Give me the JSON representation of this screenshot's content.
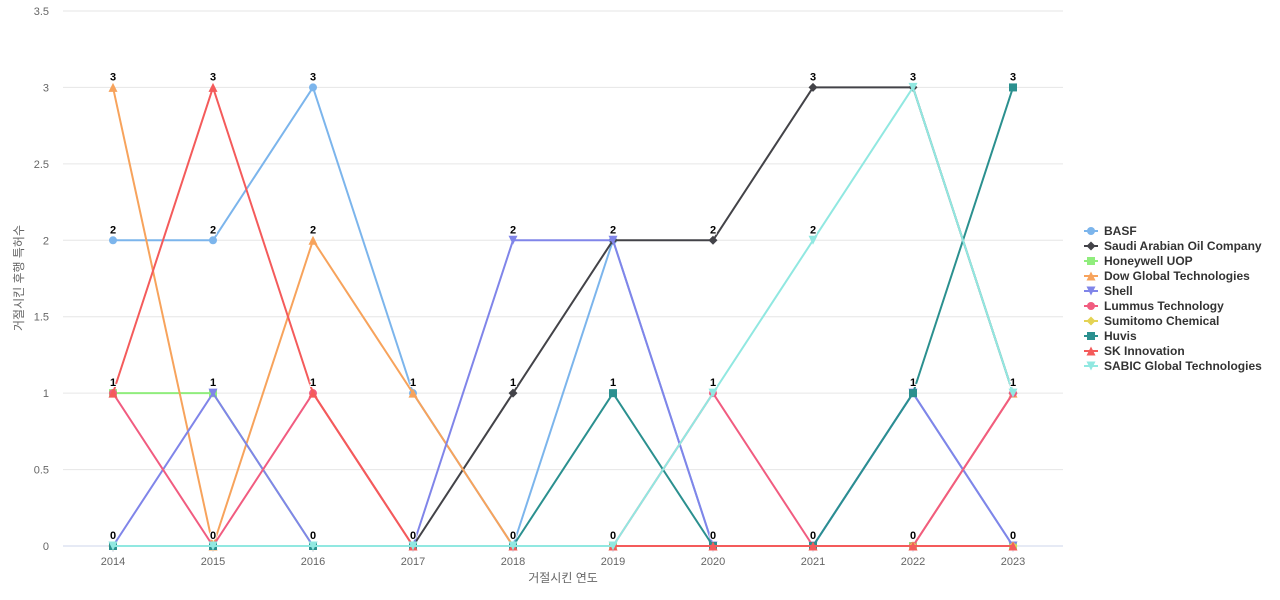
{
  "chart_data": {
    "type": "line",
    "xlabel": "거절시킨 연도",
    "ylabel": "거절시킨 후행 특허수",
    "ylim": [
      0,
      3.5
    ],
    "yticks": [
      "0",
      "0.5",
      "1",
      "1.5",
      "2",
      "2.5",
      "3",
      "3.5"
    ],
    "categories": [
      "2014",
      "2015",
      "2016",
      "2017",
      "2018",
      "2019",
      "2020",
      "2021",
      "2022",
      "2023"
    ],
    "grid": true,
    "legend_position": "right",
    "series": [
      {
        "name": "BASF",
        "color": "#7cb5ec",
        "marker": "circle",
        "values": [
          2,
          2,
          3,
          1,
          0,
          2,
          0,
          0,
          1,
          0
        ]
      },
      {
        "name": "Saudi Arabian Oil Company",
        "color": "#434348",
        "marker": "diamond",
        "values": [
          0,
          0,
          0,
          0,
          1,
          2,
          2,
          3,
          3,
          1
        ]
      },
      {
        "name": "Honeywell UOP",
        "color": "#90ed7d",
        "marker": "square",
        "values": [
          1,
          1,
          0,
          0,
          0,
          0,
          0,
          0,
          0,
          0
        ]
      },
      {
        "name": "Dow Global Technologies",
        "color": "#f7a35c",
        "marker": "triangle",
        "values": [
          3,
          0,
          2,
          1,
          0,
          0,
          0,
          0,
          0,
          1
        ]
      },
      {
        "name": "Shell",
        "color": "#8085e9",
        "marker": "triangle-down",
        "values": [
          0,
          1,
          0,
          0,
          2,
          2,
          0,
          0,
          1,
          0
        ]
      },
      {
        "name": "Lummus Technology",
        "color": "#f15c80",
        "marker": "circle",
        "values": [
          1,
          0,
          1,
          0,
          0,
          0,
          1,
          0,
          0,
          1
        ]
      },
      {
        "name": "Sumitomo Chemical",
        "color": "#e4d354",
        "marker": "diamond",
        "values": [
          0,
          0,
          0,
          0,
          0,
          0,
          0,
          0,
          0,
          0
        ]
      },
      {
        "name": "Huvis",
        "color": "#2b908f",
        "marker": "square",
        "values": [
          0,
          0,
          0,
          0,
          0,
          1,
          0,
          0,
          1,
          3
        ]
      },
      {
        "name": "SK Innovation",
        "color": "#f45b5b",
        "marker": "triangle",
        "values": [
          1,
          3,
          1,
          0,
          0,
          0,
          0,
          0,
          0,
          0
        ]
      },
      {
        "name": "SABIC Global Technologies",
        "color": "#91e8e1",
        "marker": "triangle-down",
        "values": [
          0,
          0,
          0,
          0,
          0,
          0,
          1,
          2,
          3,
          1
        ]
      }
    ],
    "data_labels": [
      {
        "x": "2014",
        "y": 3,
        "text": "3"
      },
      {
        "x": "2014",
        "y": 2,
        "text": "2"
      },
      {
        "x": "2014",
        "y": 1,
        "text": "1"
      },
      {
        "x": "2014",
        "y": 0,
        "text": "0"
      },
      {
        "x": "2015",
        "y": 3,
        "text": "3"
      },
      {
        "x": "2015",
        "y": 2,
        "text": "2"
      },
      {
        "x": "2015",
        "y": 1,
        "text": "1"
      },
      {
        "x": "2015",
        "y": 0,
        "text": "0"
      },
      {
        "x": "2016",
        "y": 3,
        "text": "3"
      },
      {
        "x": "2016",
        "y": 2,
        "text": "2"
      },
      {
        "x": "2016",
        "y": 1,
        "text": "1"
      },
      {
        "x": "2016",
        "y": 0,
        "text": "0"
      },
      {
        "x": "2017",
        "y": 1,
        "text": "1"
      },
      {
        "x": "2017",
        "y": 0,
        "text": "0"
      },
      {
        "x": "2018",
        "y": 2,
        "text": "2"
      },
      {
        "x": "2018",
        "y": 1,
        "text": "1"
      },
      {
        "x": "2018",
        "y": 0,
        "text": "0"
      },
      {
        "x": "2019",
        "y": 2,
        "text": "2"
      },
      {
        "x": "2019",
        "y": 1,
        "text": "1"
      },
      {
        "x": "2019",
        "y": 0,
        "text": "0"
      },
      {
        "x": "2020",
        "y": 2,
        "text": "2"
      },
      {
        "x": "2020",
        "y": 1,
        "text": "1"
      },
      {
        "x": "2020",
        "y": 0,
        "text": "0"
      },
      {
        "x": "2021",
        "y": 3,
        "text": "3"
      },
      {
        "x": "2021",
        "y": 2,
        "text": "2"
      },
      {
        "x": "2021",
        "y": 0,
        "text": "0"
      },
      {
        "x": "2022",
        "y": 3,
        "text": "3"
      },
      {
        "x": "2022",
        "y": 1,
        "text": "1"
      },
      {
        "x": "2022",
        "y": 0,
        "text": "0"
      },
      {
        "x": "2023",
        "y": 3,
        "text": "3"
      },
      {
        "x": "2023",
        "y": 1,
        "text": "1"
      },
      {
        "x": "2023",
        "y": 0,
        "text": "0"
      }
    ]
  }
}
